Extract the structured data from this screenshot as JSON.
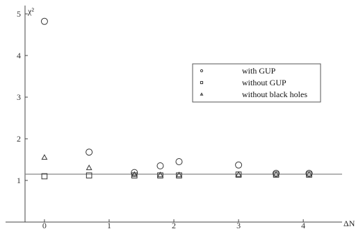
{
  "chart_data": {
    "type": "scatter",
    "xlabel": "ΔN",
    "ylabel": "χ²",
    "xlim": [
      -0.3,
      4.6
    ],
    "ylim": [
      0,
      5.2
    ],
    "x_ticks": [
      0,
      1,
      2,
      3,
      4
    ],
    "y_ticks": [
      1,
      2,
      3,
      4,
      5
    ],
    "reference_line": 1.15,
    "legend_position": "upper-right",
    "series": [
      {
        "name": "with GUP",
        "marker": "circle",
        "x": [
          0,
          0.69,
          1.39,
          1.79,
          2.08,
          3.0,
          3.58,
          4.09
        ],
        "y": [
          4.82,
          1.68,
          1.19,
          1.35,
          1.45,
          1.37,
          1.17,
          1.17
        ]
      },
      {
        "name": "without GUP",
        "marker": "square",
        "x": [
          0,
          0.69,
          1.39,
          1.79,
          2.08,
          3.0,
          3.58,
          4.09
        ],
        "y": [
          1.1,
          1.12,
          1.12,
          1.12,
          1.12,
          1.14,
          1.14,
          1.14
        ]
      },
      {
        "name": "without black holes",
        "marker": "triangle",
        "x": [
          0,
          0.69,
          1.39,
          1.79,
          2.08,
          3.0,
          3.58,
          4.09
        ],
        "y": [
          1.55,
          1.3,
          1.14,
          1.13,
          1.13,
          1.14,
          1.15,
          1.15
        ]
      }
    ]
  }
}
